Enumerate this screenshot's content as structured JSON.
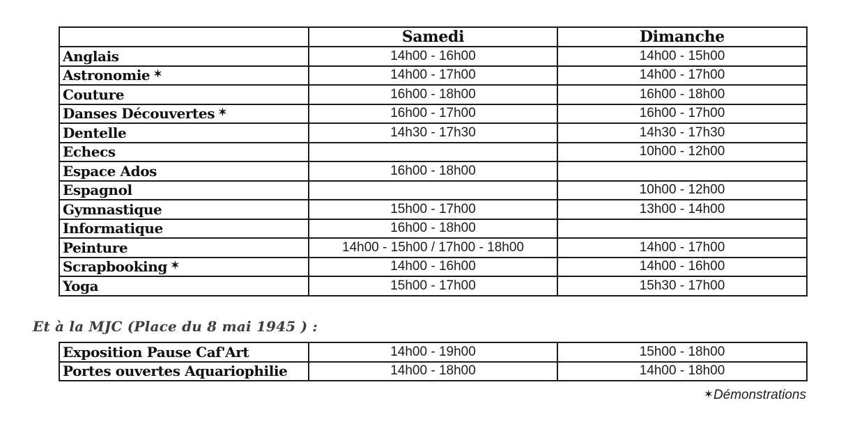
{
  "colors": {
    "background": "#ffffff",
    "border": "#1c1c1c",
    "text": "#111111",
    "note_text": "#3d3d3d"
  },
  "schedule_table": {
    "columns": [
      "",
      "Samedi",
      "Dimanche"
    ],
    "rows": [
      {
        "activity": "Anglais",
        "demo": false,
        "samedi": "14h00 - 16h00",
        "dimanche": "14h00 - 15h00"
      },
      {
        "activity": "Astronomie",
        "demo": true,
        "samedi": "14h00 - 17h00",
        "dimanche": "14h00 - 17h00"
      },
      {
        "activity": "Couture",
        "demo": false,
        "samedi": "16h00 - 18h00",
        "dimanche": "16h00 - 18h00"
      },
      {
        "activity": "Danses Découvertes",
        "demo": true,
        "samedi": "16h00 - 17h00",
        "dimanche": "16h00 - 17h00"
      },
      {
        "activity": "Dentelle",
        "demo": false,
        "samedi": "14h30 - 17h30",
        "dimanche": "14h30 - 17h30"
      },
      {
        "activity": "Echecs",
        "demo": false,
        "samedi": "",
        "dimanche": "10h00 - 12h00"
      },
      {
        "activity": "Espace Ados",
        "demo": false,
        "samedi": "16h00 - 18h00",
        "dimanche": ""
      },
      {
        "activity": "Espagnol",
        "demo": false,
        "samedi": "",
        "dimanche": "10h00 - 12h00"
      },
      {
        "activity": "Gymnastique",
        "demo": false,
        "samedi": "15h00 - 17h00",
        "dimanche": "13h00 - 14h00"
      },
      {
        "activity": "Informatique",
        "demo": false,
        "samedi": "16h00 - 18h00",
        "dimanche": ""
      },
      {
        "activity": "Peinture",
        "demo": false,
        "samedi": "14h00 - 15h00 / 17h00 - 18h00",
        "dimanche": "14h00 - 17h00"
      },
      {
        "activity": "Scrapbooking",
        "demo": true,
        "samedi": "14h00 - 16h00",
        "dimanche": "14h00 - 16h00"
      },
      {
        "activity": "Yoga",
        "demo": false,
        "samedi": "15h00 - 17h00",
        "dimanche": "15h30 - 17h00"
      }
    ]
  },
  "mjc_note": "Et à la MJC (Place du 8 mai 1945 ) :",
  "mjc_table": {
    "rows": [
      {
        "activity": "Exposition Pause Caf'Art",
        "demo": false,
        "samedi": "14h00 - 19h00",
        "dimanche": "15h00 - 18h00"
      },
      {
        "activity": "Portes ouvertes Aquariophilie",
        "demo": false,
        "samedi": "14h00 - 18h00",
        "dimanche": "14h00 - 18h00"
      }
    ]
  },
  "footnote": {
    "star": "✶",
    "label": "Démonstrations"
  }
}
